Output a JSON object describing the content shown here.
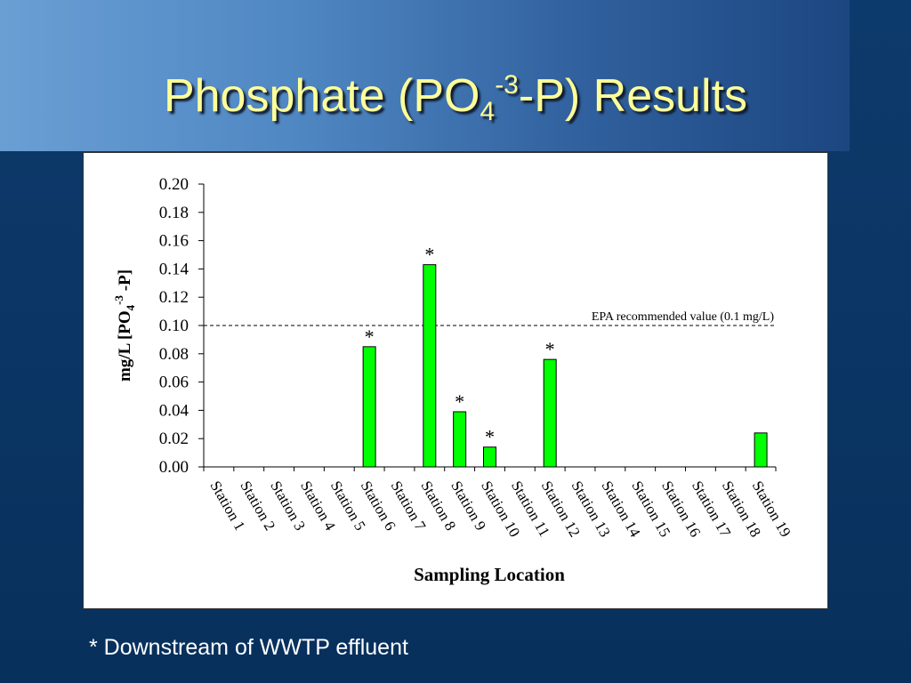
{
  "slide": {
    "title_main": "Phosphate (PO",
    "title_sub": "4",
    "title_sup": "-3",
    "title_end": "-P) Results",
    "footnote": "* Downstream of WWTP effluent",
    "colors": {
      "background": "#0a3260",
      "title": "#ffff99",
      "bar": "#00ff00",
      "footnote": "#ffffff"
    }
  },
  "chart_data": {
    "type": "bar",
    "categories": [
      "Station 1",
      "Station 2",
      "Station 3",
      "Station 4",
      "Station 5",
      "Station 6",
      "Station 7",
      "Station 8",
      "Station 9",
      "Station 10",
      "Station 11",
      "Station 12",
      "Station 13",
      "Station 14",
      "Station 15",
      "Station 16",
      "Station 17",
      "Station 18",
      "Station 19"
    ],
    "values": [
      0,
      0,
      0,
      0,
      0,
      0.085,
      0,
      0.143,
      0.039,
      0.014,
      0,
      0.076,
      0,
      0,
      0,
      0,
      0,
      0,
      0.024
    ],
    "downstream_flags": [
      false,
      false,
      false,
      false,
      false,
      true,
      false,
      true,
      true,
      true,
      false,
      true,
      false,
      false,
      false,
      false,
      false,
      false,
      false
    ],
    "marker_text": "*",
    "xlabel": "Sampling Location",
    "ylabel_main": "mg/L [PO",
    "ylabel_sub": "4",
    "ylabel_sup": "-3",
    "ylabel_end": " -P]",
    "ylim": [
      0,
      0.2
    ],
    "yticks": [
      "0.00",
      "0.02",
      "0.04",
      "0.06",
      "0.08",
      "0.10",
      "0.12",
      "0.14",
      "0.16",
      "0.18",
      "0.20"
    ],
    "reference_line": {
      "value": 0.1,
      "label": "EPA recommended value (0.1 mg/L)",
      "style": "dashed"
    },
    "grid": false,
    "legend": "none",
    "bar_color": "#00ff00"
  }
}
